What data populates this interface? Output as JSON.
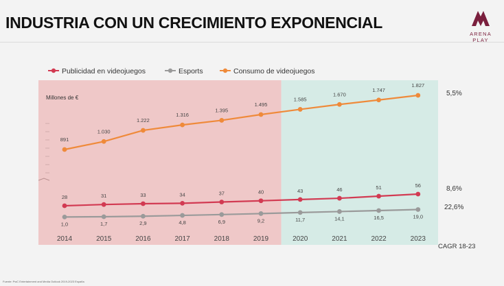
{
  "slide": {
    "title": "INDUSTRIA CON UN CRECIMIENTO EXPONENCIAL",
    "source": "Fuente: PwC Entertainment and Media Outlook 2019-2023 España"
  },
  "logo": {
    "line1": "ARENA",
    "line2": "PLAY",
    "color": "#7a1f3d",
    "icon": "arena-play-logo-icon"
  },
  "chart_data": {
    "type": "line",
    "title": "",
    "ylabel": "Millones de €",
    "x": [
      "2014",
      "2015",
      "2016",
      "2017",
      "2018",
      "2019",
      "2020",
      "2021",
      "2022",
      "2023"
    ],
    "forecast_from": "2020",
    "y_axis_break": true,
    "legend_position": "top",
    "series": [
      {
        "name": "Publicidad en videojuegos",
        "color": "#d23a52",
        "values": [
          28,
          31,
          33,
          34,
          37,
          40,
          43,
          46,
          51,
          56
        ],
        "labels": [
          "28",
          "31",
          "33",
          "34",
          "37",
          "40",
          "43",
          "46",
          "51",
          "56"
        ],
        "cagr": "8,6%"
      },
      {
        "name": "Esports",
        "color": "#9a9a9a",
        "values": [
          1.0,
          1.7,
          2.9,
          4.8,
          6.9,
          9.2,
          11.7,
          14.1,
          16.5,
          19.0
        ],
        "labels": [
          "1,0",
          "1,7",
          "2,9",
          "4,8",
          "6,9",
          "9,2",
          "11,7",
          "14,1",
          "16,5",
          "19,0"
        ],
        "cagr": "22,6%"
      },
      {
        "name": "Consumo de videojuegos",
        "color": "#ef8a3a",
        "values": [
          891,
          1030,
          1222,
          1316,
          1395,
          1495,
          1585,
          1670,
          1747,
          1827
        ],
        "labels": [
          "891",
          "1.030",
          "1.222",
          "1.316",
          "1.395",
          "1.495",
          "1.585",
          "1.670",
          "1.747",
          "1.827"
        ],
        "cagr": "5,5%"
      }
    ],
    "cagr_title": "CAGR 18-23",
    "historical_bg": "#efc8c8",
    "forecast_bg": "#d6ebe6"
  }
}
